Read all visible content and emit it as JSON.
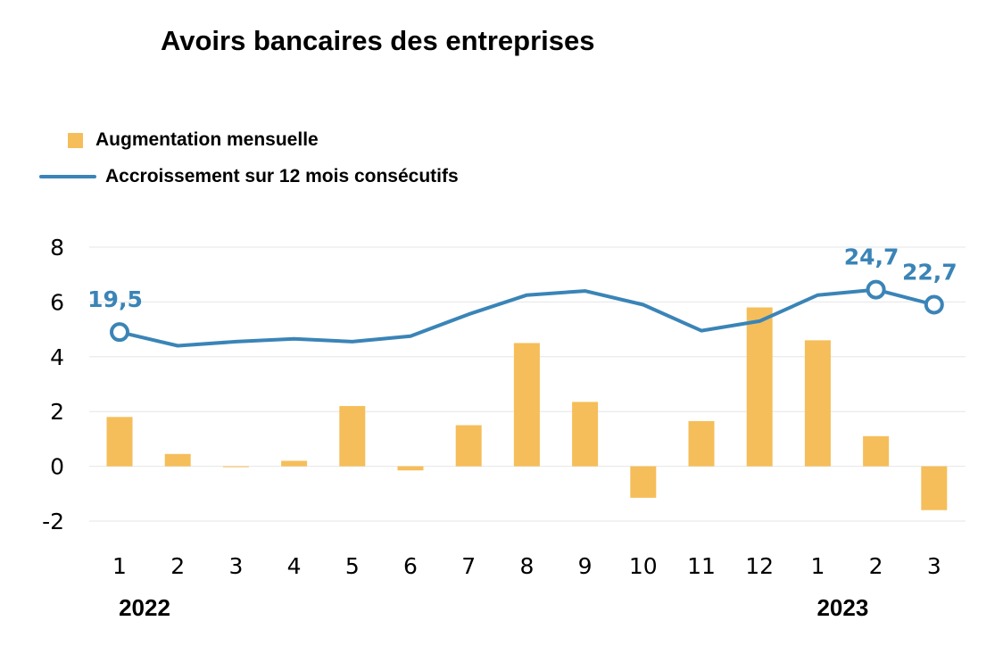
{
  "chart_data": {
    "type": "bar+line",
    "title": "Avoirs bancaires des entreprises",
    "categories": [
      "1",
      "2",
      "3",
      "4",
      "5",
      "6",
      "7",
      "8",
      "9",
      "10",
      "11",
      "12",
      "1",
      "2",
      "3"
    ],
    "year_labels": [
      {
        "text": "2022",
        "category_index": 0
      },
      {
        "text": "2023",
        "category_index": 12
      }
    ],
    "series": [
      {
        "name": "Augmentation mensuelle",
        "type": "bar",
        "color": "#F5BE5A",
        "values": [
          1.8,
          0.45,
          0.0,
          0.2,
          2.2,
          -0.15,
          1.5,
          4.5,
          2.35,
          -1.15,
          1.65,
          5.8,
          4.6,
          1.1,
          -1.6
        ]
      },
      {
        "name": "Accroissement sur 12 mois consécutifs",
        "type": "line",
        "color": "#3A84B7",
        "values": [
          4.9,
          4.4,
          4.55,
          4.65,
          4.55,
          4.75,
          5.55,
          6.25,
          6.4,
          5.9,
          4.95,
          5.3,
          6.25,
          6.45,
          5.9
        ],
        "annotations": [
          {
            "index": 0,
            "label": "19,5"
          },
          {
            "index": 13,
            "label": "24,7"
          },
          {
            "index": 14,
            "label": "22,7"
          }
        ]
      }
    ],
    "y_ticks": [
      8,
      6,
      4,
      2,
      0,
      -2
    ],
    "ylim": [
      -2,
      8
    ],
    "grid": true,
    "legend_position": "top-left"
  }
}
